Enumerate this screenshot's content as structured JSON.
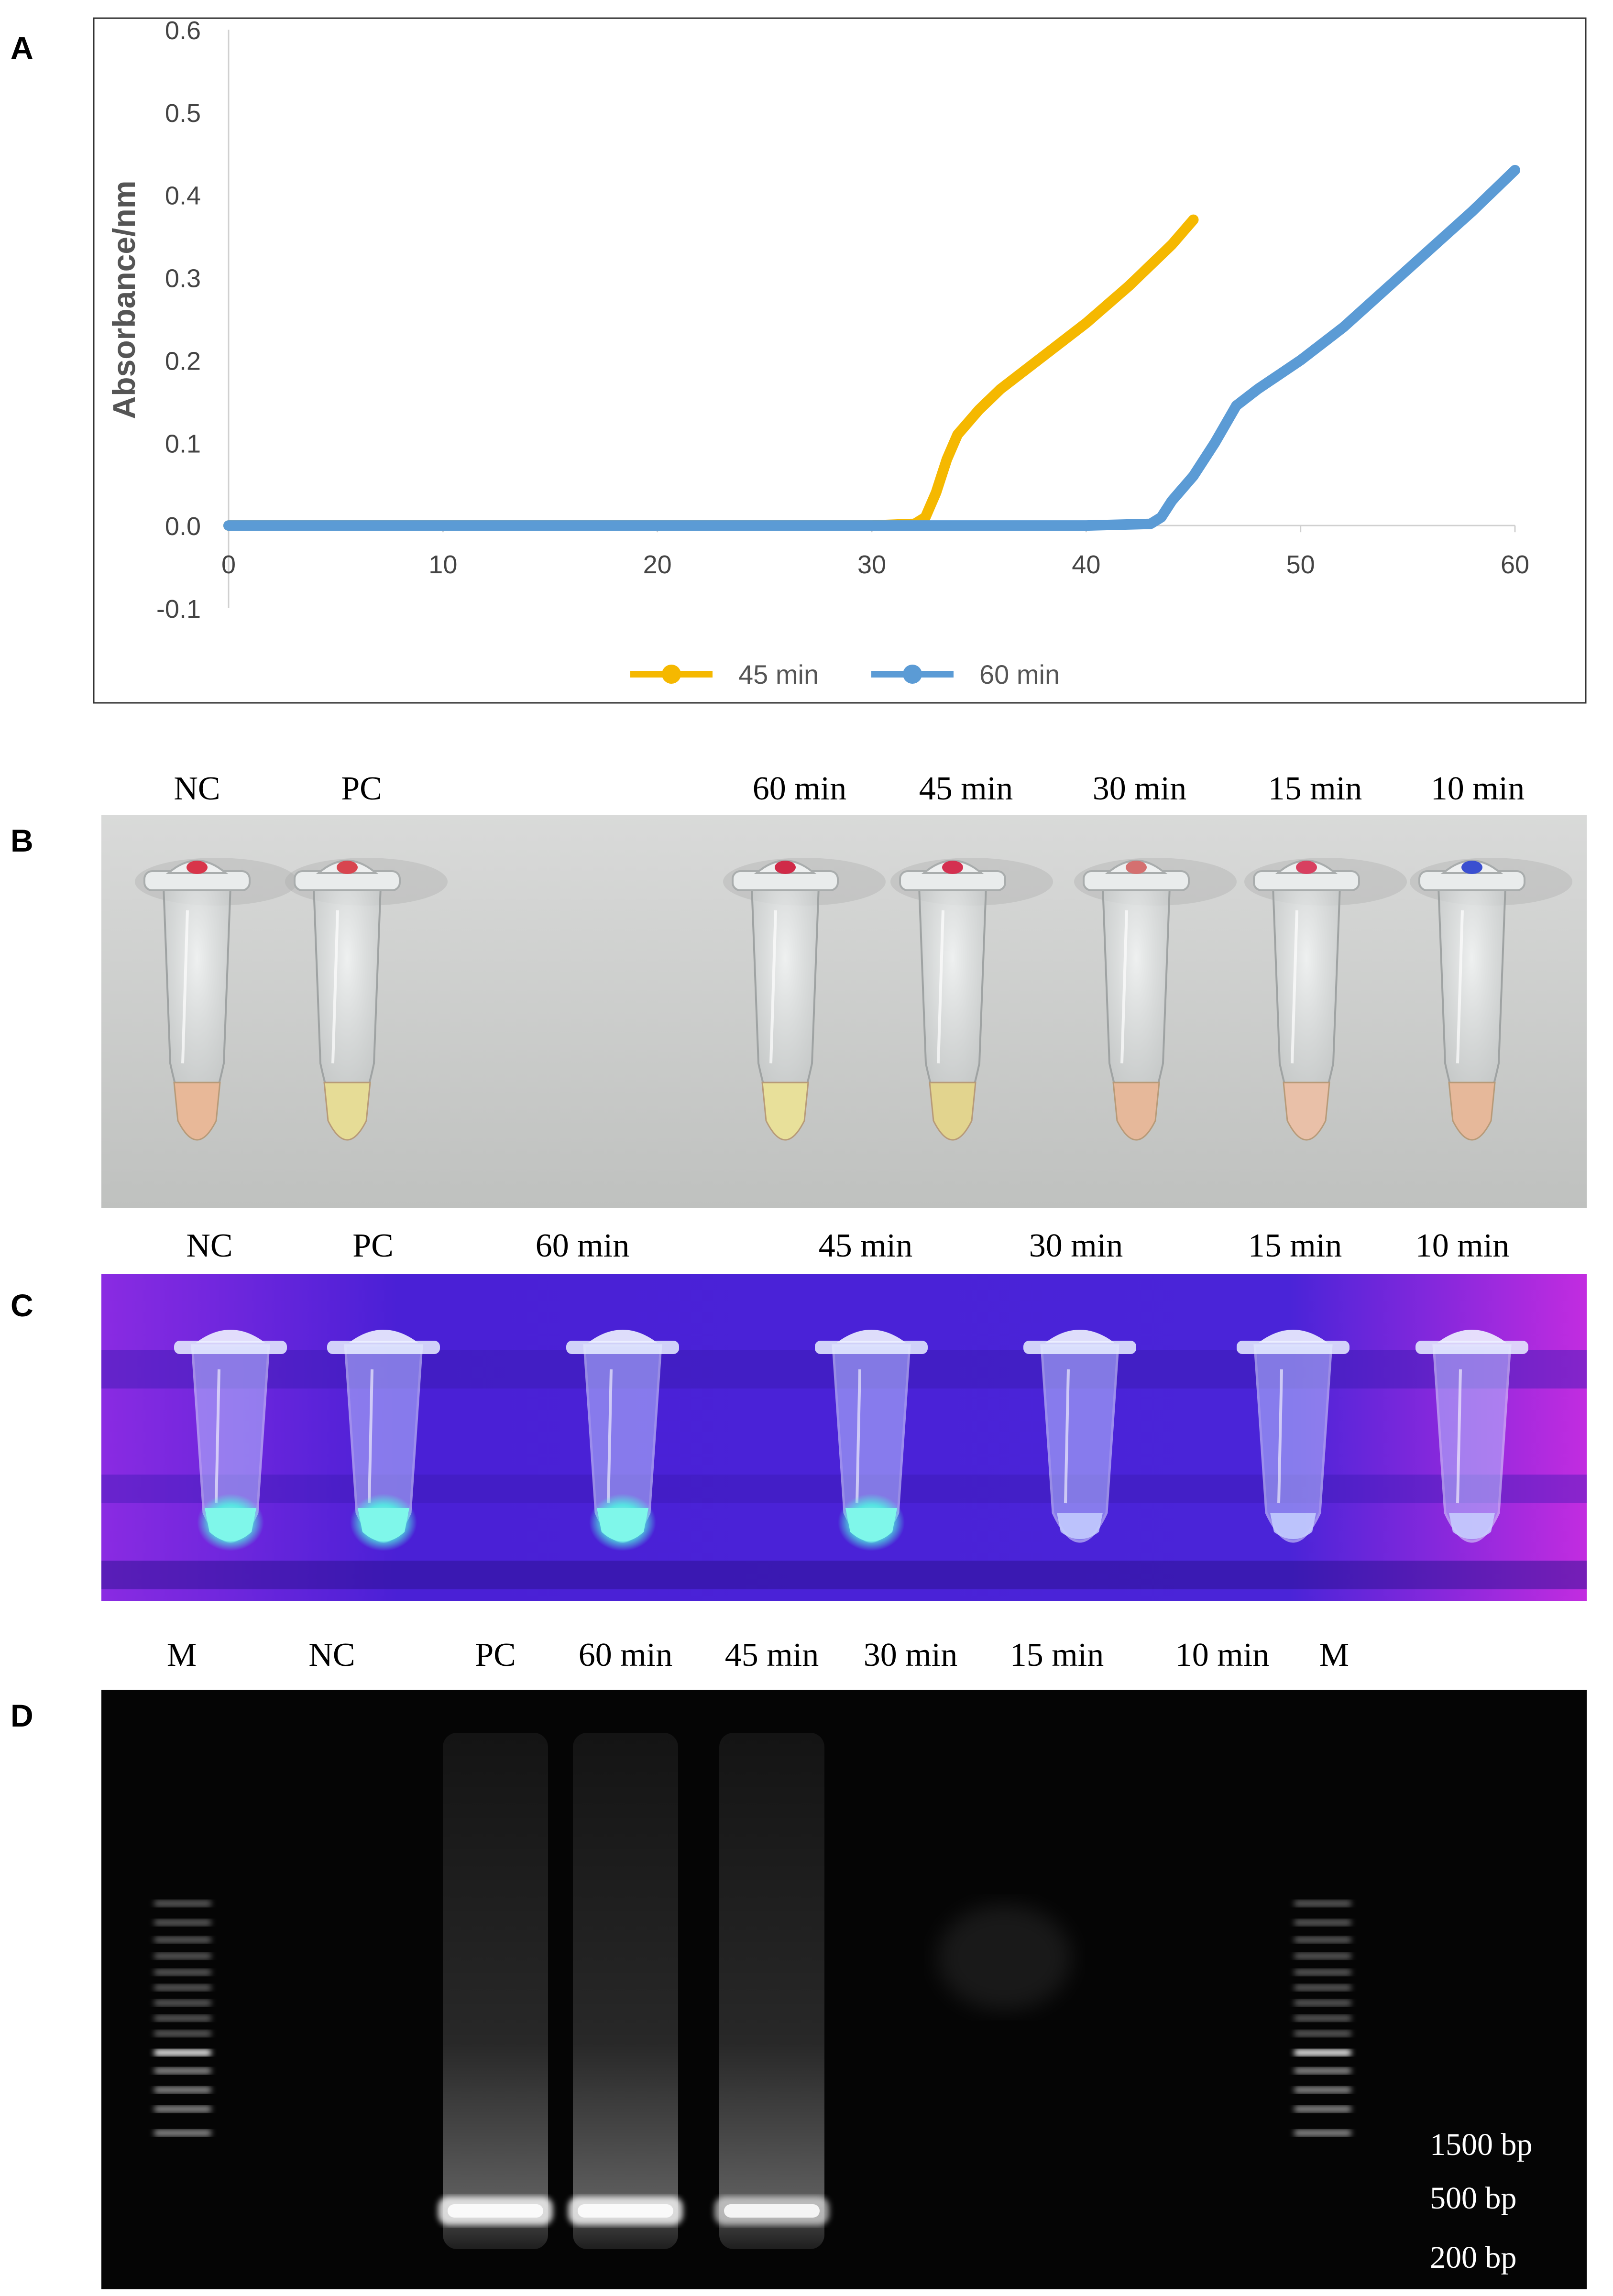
{
  "panels": {
    "a": {
      "letter": "A"
    },
    "b": {
      "letter": "B",
      "lanes": [
        "NC",
        "PC",
        "60 min",
        "45 min",
        "30 min",
        "15 min",
        "10 min"
      ]
    },
    "c": {
      "letter": "C",
      "lanes": [
        "NC",
        "PC",
        "60 min",
        "45 min",
        "30 min",
        "15 min",
        "10 min"
      ]
    },
    "d": {
      "letter": "D",
      "lanes": [
        "M",
        "NC",
        "PC",
        "60 min",
        "45 min",
        "30 min",
        "15 min",
        "10 min",
        "M"
      ],
      "markers": [
        "1500 bp",
        "500 bp",
        "200 bp"
      ]
    }
  },
  "chart_data": {
    "type": "line",
    "title": "",
    "xlabel": "",
    "ylabel": "Absorbance/nm",
    "xlim": [
      0,
      60
    ],
    "ylim": [
      -0.1,
      0.6
    ],
    "x_ticks": [
      "0",
      "10",
      "20",
      "30",
      "40",
      "50",
      "60"
    ],
    "y_ticks": [
      "0.6",
      "0.5",
      "0.4",
      "0.3",
      "0.2",
      "0.1",
      "0.0",
      "-0.1"
    ],
    "grid": false,
    "legend_position": "bottom",
    "series": [
      {
        "name": "45 min",
        "color": "#F5B800",
        "x": [
          0,
          10,
          20,
          30,
          32,
          32.5,
          33,
          33.5,
          34,
          35,
          36,
          38,
          40,
          42,
          44,
          45
        ],
        "y": [
          0,
          0,
          0,
          0,
          0.002,
          0.01,
          0.04,
          0.08,
          0.11,
          0.14,
          0.165,
          0.205,
          0.245,
          0.29,
          0.34,
          0.37
        ]
      },
      {
        "name": "60 min",
        "color": "#5B9BD5",
        "x": [
          0,
          10,
          20,
          30,
          40,
          43,
          43.5,
          44,
          45,
          46,
          47,
          48,
          50,
          52,
          55,
          58,
          60
        ],
        "y": [
          0,
          0,
          0,
          0,
          0,
          0.002,
          0.01,
          0.03,
          0.06,
          0.1,
          0.145,
          0.165,
          0.2,
          0.24,
          0.31,
          0.38,
          0.43
        ]
      }
    ]
  },
  "colors": {
    "fluor": "#7FFFEF",
    "uv_bg": "#4B1FD8",
    "gel_bg": "#050505",
    "bench": "#C9CBC9"
  }
}
